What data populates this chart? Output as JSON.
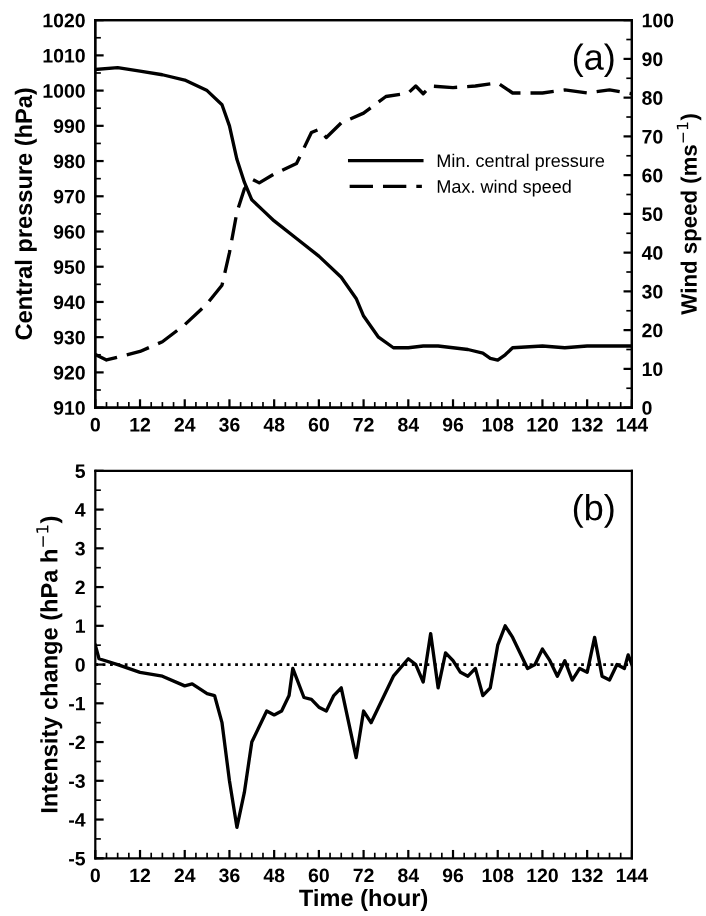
{
  "chart_data": [
    {
      "type": "line",
      "ylabel": "Central pressure (hPa)",
      "y2label": "Wind speed (ms$^{−1}$)",
      "annotations": [
        "(a)"
      ],
      "xlim": [
        0,
        144
      ],
      "xticks": [
        0,
        12,
        24,
        36,
        48,
        60,
        72,
        84,
        96,
        108,
        120,
        132,
        144
      ],
      "ylim": [
        910,
        1020
      ],
      "yticks": [
        910,
        920,
        930,
        940,
        950,
        960,
        970,
        980,
        990,
        1000,
        1010,
        1020
      ],
      "y2lim": [
        0,
        100
      ],
      "y2ticks": [
        0,
        10,
        20,
        30,
        40,
        50,
        60,
        70,
        80,
        90,
        100
      ],
      "grid": false,
      "legend": "center right",
      "marker": "none",
      "series": [
        {
          "name": "Min. central pressure",
          "color": "#000000",
          "line_style": "solid",
          "x": [
            0,
            6,
            12,
            18,
            24,
            30,
            34,
            36,
            38,
            40,
            42,
            45,
            48,
            54,
            60,
            66,
            70,
            72,
            76,
            80,
            84,
            88,
            92,
            96,
            100,
            104,
            106,
            108,
            110,
            112,
            120,
            126,
            132,
            138,
            144
          ],
          "values": [
            1006,
            1006.5,
            1005.5,
            1004.5,
            1003,
            1000,
            996,
            990,
            980.5,
            974,
            969,
            966,
            963,
            958,
            953,
            947,
            941,
            936,
            930,
            927,
            927,
            927.5,
            927.5,
            927,
            926.5,
            925.5,
            924,
            923.5,
            925,
            927,
            927.5,
            927,
            927.5,
            927.5,
            927.5
          ]
        },
        {
          "name": "Max. wind speed",
          "color": "#000000",
          "line_style": "dashed",
          "axis": "y2",
          "x": [
            0,
            3,
            12,
            18,
            24,
            30,
            34,
            36,
            38,
            40,
            42,
            44,
            48,
            54,
            58,
            60,
            62,
            66,
            72,
            78,
            84,
            86,
            88,
            90,
            96,
            102,
            108,
            112,
            120,
            126,
            132,
            138,
            144
          ],
          "values": [
            13.7,
            12.3,
            14.5,
            17,
            21.4,
            26.8,
            31.6,
            40,
            50.4,
            56.4,
            59,
            58,
            60.3,
            63,
            71,
            71.8,
            69.7,
            73.5,
            76,
            80.3,
            81.2,
            83,
            81,
            83,
            82.6,
            83,
            83.8,
            81.2,
            81.2,
            82,
            81.2,
            82,
            81
          ]
        }
      ]
    },
    {
      "type": "line",
      "xlabel": "Time (hour)",
      "ylabel": "Intensity change (hPa h$^{−1}$)",
      "annotations": [
        "(b)"
      ],
      "xlim": [
        0,
        144
      ],
      "xticks": [
        0,
        12,
        24,
        36,
        48,
        60,
        72,
        84,
        96,
        108,
        120,
        132,
        144
      ],
      "ylim": [
        -5,
        5
      ],
      "yticks": [
        {
          "value": -5,
          "label": "-5"
        },
        {
          "value": -4,
          "label": "-4"
        },
        {
          "value": -3,
          "label": "-3"
        },
        {
          "value": -2,
          "label": "-2"
        },
        {
          "value": -1,
          "label": "-1"
        },
        0,
        1,
        2,
        3,
        4,
        5
      ],
      "grid": false,
      "marker": "none",
      "ref_lines": [
        {
          "axis": "y",
          "value": 0,
          "color": "#000000",
          "line_style": "dotted"
        }
      ],
      "series": [
        {
          "color": "#000000",
          "line_style": "solid",
          "x": [
            0,
            1,
            6,
            12,
            18,
            24,
            26,
            30,
            32,
            34,
            36,
            38,
            40,
            42,
            44,
            46,
            48,
            50,
            52,
            53,
            56,
            58,
            60,
            62,
            64,
            66,
            68,
            70,
            72,
            74,
            76,
            78,
            80,
            84,
            86,
            88,
            90,
            92,
            94,
            96,
            98,
            100,
            102,
            104,
            106,
            108,
            110,
            112,
            114,
            116,
            118,
            120,
            122,
            124,
            126,
            128,
            130,
            132,
            134,
            136,
            138,
            140,
            142,
            143,
            144
          ],
          "values": [
            0.5,
            0.15,
            0.0,
            -0.2,
            -0.3,
            -0.55,
            -0.5,
            -0.75,
            -0.8,
            -1.5,
            -3.0,
            -4.2,
            -3.3,
            -2.0,
            -1.6,
            -1.2,
            -1.3,
            -1.2,
            -0.8,
            -0.1,
            -0.85,
            -0.9,
            -1.1,
            -1.2,
            -0.8,
            -0.6,
            -1.5,
            -2.4,
            -1.2,
            -1.5,
            -1.1,
            -0.7,
            -0.3,
            0.15,
            0.0,
            -0.45,
            0.8,
            -0.6,
            0.3,
            0.1,
            -0.2,
            -0.3,
            -0.1,
            -0.8,
            -0.6,
            0.5,
            1.0,
            0.7,
            0.3,
            -0.1,
            0.0,
            0.4,
            0.1,
            -0.3,
            0.1,
            -0.4,
            -0.1,
            -0.2,
            0.7,
            -0.3,
            -0.4,
            0.0,
            -0.1,
            0.25,
            0.0
          ]
        }
      ]
    }
  ]
}
